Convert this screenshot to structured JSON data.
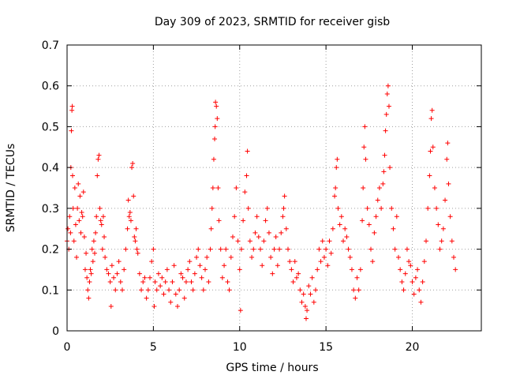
{
  "chart_data": {
    "type": "scatter",
    "title": "Day 309 of 2023, SRMTID for receiver gisb",
    "xlabel": "GPS time / hours",
    "ylabel": "SRMTID / TECUs",
    "xlim": [
      0,
      24
    ],
    "ylim": [
      0,
      0.7
    ],
    "xticks": [
      0,
      5,
      10,
      15,
      20
    ],
    "xtick_labels": [
      "0",
      "5",
      "10",
      "15",
      "20"
    ],
    "yticks": [
      0,
      0.1,
      0.2,
      0.3,
      0.4,
      0.5,
      0.6,
      0.7
    ],
    "ytick_labels": [
      "0",
      "0.1",
      "0.2",
      "0.3",
      "0.4",
      "0.5",
      "0.6",
      "0.7"
    ],
    "grid": true,
    "marker": "+",
    "marker_color": "#ff0000",
    "series": [
      {
        "name": "SRMTID",
        "points": [
          [
            0.0,
            0.22
          ],
          [
            0.05,
            0.25
          ],
          [
            0.1,
            0.2
          ],
          [
            0.15,
            0.28
          ],
          [
            0.2,
            0.24
          ],
          [
            0.22,
            0.4
          ],
          [
            0.25,
            0.49
          ],
          [
            0.28,
            0.54
          ],
          [
            0.3,
            0.55
          ],
          [
            0.32,
            0.38
          ],
          [
            0.35,
            0.3
          ],
          [
            0.4,
            0.22
          ],
          [
            0.45,
            0.35
          ],
          [
            0.5,
            0.26
          ],
          [
            0.55,
            0.18
          ],
          [
            0.6,
            0.3
          ],
          [
            0.65,
            0.36
          ],
          [
            0.7,
            0.27
          ],
          [
            0.75,
            0.33
          ],
          [
            0.8,
            0.24
          ],
          [
            0.85,
            0.29
          ],
          [
            0.9,
            0.28
          ],
          [
            0.95,
            0.34
          ],
          [
            1.0,
            0.23
          ],
          [
            1.05,
            0.15
          ],
          [
            1.1,
            0.19
          ],
          [
            1.15,
            0.13
          ],
          [
            1.2,
            0.1
          ],
          [
            1.25,
            0.08
          ],
          [
            1.3,
            0.12
          ],
          [
            1.35,
            0.15
          ],
          [
            1.4,
            0.14
          ],
          [
            1.45,
            0.2
          ],
          [
            1.5,
            0.17
          ],
          [
            1.55,
            0.22
          ],
          [
            1.6,
            0.19
          ],
          [
            1.65,
            0.24
          ],
          [
            1.7,
            0.28
          ],
          [
            1.75,
            0.38
          ],
          [
            1.8,
            0.42
          ],
          [
            1.85,
            0.43
          ],
          [
            1.9,
            0.3
          ],
          [
            1.95,
            0.27
          ],
          [
            2.0,
            0.26
          ],
          [
            2.05,
            0.2
          ],
          [
            2.1,
            0.28
          ],
          [
            2.15,
            0.23
          ],
          [
            2.2,
            0.18
          ],
          [
            2.3,
            0.15
          ],
          [
            2.4,
            0.14
          ],
          [
            2.5,
            0.12
          ],
          [
            2.55,
            0.06
          ],
          [
            2.6,
            0.16
          ],
          [
            2.7,
            0.13
          ],
          [
            2.8,
            0.1
          ],
          [
            2.9,
            0.14
          ],
          [
            3.0,
            0.17
          ],
          [
            3.1,
            0.12
          ],
          [
            3.2,
            0.1
          ],
          [
            3.3,
            0.15
          ],
          [
            3.4,
            0.2
          ],
          [
            3.5,
            0.25
          ],
          [
            3.55,
            0.32
          ],
          [
            3.6,
            0.28
          ],
          [
            3.65,
            0.29
          ],
          [
            3.7,
            0.27
          ],
          [
            3.75,
            0.4
          ],
          [
            3.8,
            0.41
          ],
          [
            3.85,
            0.33
          ],
          [
            3.9,
            0.23
          ],
          [
            3.95,
            0.22
          ],
          [
            4.0,
            0.25
          ],
          [
            4.05,
            0.2
          ],
          [
            4.1,
            0.19
          ],
          [
            4.2,
            0.14
          ],
          [
            4.3,
            0.1
          ],
          [
            4.4,
            0.12
          ],
          [
            4.5,
            0.13
          ],
          [
            4.6,
            0.08
          ],
          [
            4.7,
            0.1
          ],
          [
            4.8,
            0.13
          ],
          [
            4.9,
            0.17
          ],
          [
            5.0,
            0.2
          ],
          [
            5.05,
            0.06
          ],
          [
            5.1,
            0.12
          ],
          [
            5.2,
            0.1
          ],
          [
            5.3,
            0.14
          ],
          [
            5.4,
            0.11
          ],
          [
            5.5,
            0.13
          ],
          [
            5.6,
            0.09
          ],
          [
            5.7,
            0.12
          ],
          [
            5.8,
            0.15
          ],
          [
            5.9,
            0.1
          ],
          [
            6.0,
            0.07
          ],
          [
            6.1,
            0.12
          ],
          [
            6.2,
            0.16
          ],
          [
            6.3,
            0.09
          ],
          [
            6.4,
            0.06
          ],
          [
            6.5,
            0.1
          ],
          [
            6.6,
            0.14
          ],
          [
            6.7,
            0.13
          ],
          [
            6.8,
            0.08
          ],
          [
            6.9,
            0.12
          ],
          [
            7.0,
            0.15
          ],
          [
            7.1,
            0.17
          ],
          [
            7.2,
            0.12
          ],
          [
            7.3,
            0.1
          ],
          [
            7.4,
            0.14
          ],
          [
            7.5,
            0.18
          ],
          [
            7.6,
            0.2
          ],
          [
            7.7,
            0.16
          ],
          [
            7.8,
            0.13
          ],
          [
            7.9,
            0.1
          ],
          [
            8.0,
            0.15
          ],
          [
            8.1,
            0.18
          ],
          [
            8.2,
            0.12
          ],
          [
            8.3,
            0.2
          ],
          [
            8.35,
            0.25
          ],
          [
            8.4,
            0.3
          ],
          [
            8.45,
            0.35
          ],
          [
            8.5,
            0.42
          ],
          [
            8.55,
            0.47
          ],
          [
            8.58,
            0.5
          ],
          [
            8.6,
            0.56
          ],
          [
            8.65,
            0.55
          ],
          [
            8.7,
            0.52
          ],
          [
            8.75,
            0.35
          ],
          [
            8.8,
            0.27
          ],
          [
            8.9,
            0.2
          ],
          [
            9.0,
            0.13
          ],
          [
            9.1,
            0.16
          ],
          [
            9.2,
            0.2
          ],
          [
            9.3,
            0.12
          ],
          [
            9.4,
            0.1
          ],
          [
            9.5,
            0.18
          ],
          [
            9.6,
            0.23
          ],
          [
            9.7,
            0.28
          ],
          [
            9.8,
            0.35
          ],
          [
            9.9,
            0.22
          ],
          [
            10.0,
            0.15
          ],
          [
            10.05,
            0.05
          ],
          [
            10.1,
            0.2
          ],
          [
            10.2,
            0.27
          ],
          [
            10.3,
            0.34
          ],
          [
            10.4,
            0.38
          ],
          [
            10.45,
            0.44
          ],
          [
            10.5,
            0.3
          ],
          [
            10.6,
            0.22
          ],
          [
            10.7,
            0.18
          ],
          [
            10.8,
            0.2
          ],
          [
            10.9,
            0.24
          ],
          [
            11.0,
            0.28
          ],
          [
            11.1,
            0.23
          ],
          [
            11.2,
            0.2
          ],
          [
            11.3,
            0.16
          ],
          [
            11.4,
            0.22
          ],
          [
            11.5,
            0.27
          ],
          [
            11.6,
            0.3
          ],
          [
            11.7,
            0.24
          ],
          [
            11.8,
            0.18
          ],
          [
            11.9,
            0.14
          ],
          [
            12.0,
            0.2
          ],
          [
            12.1,
            0.23
          ],
          [
            12.2,
            0.16
          ],
          [
            12.3,
            0.2
          ],
          [
            12.4,
            0.24
          ],
          [
            12.5,
            0.28
          ],
          [
            12.55,
            0.3
          ],
          [
            12.6,
            0.33
          ],
          [
            12.7,
            0.25
          ],
          [
            12.8,
            0.2
          ],
          [
            12.9,
            0.17
          ],
          [
            13.0,
            0.15
          ],
          [
            13.1,
            0.12
          ],
          [
            13.2,
            0.17
          ],
          [
            13.3,
            0.13
          ],
          [
            13.4,
            0.14
          ],
          [
            13.5,
            0.1
          ],
          [
            13.6,
            0.07
          ],
          [
            13.7,
            0.09
          ],
          [
            13.8,
            0.06
          ],
          [
            13.85,
            0.03
          ],
          [
            13.9,
            0.05
          ],
          [
            14.0,
            0.11
          ],
          [
            14.1,
            0.09
          ],
          [
            14.2,
            0.13
          ],
          [
            14.3,
            0.07
          ],
          [
            14.4,
            0.1
          ],
          [
            14.5,
            0.15
          ],
          [
            14.6,
            0.2
          ],
          [
            14.7,
            0.17
          ],
          [
            14.8,
            0.22
          ],
          [
            14.9,
            0.18
          ],
          [
            15.0,
            0.2
          ],
          [
            15.1,
            0.16
          ],
          [
            15.2,
            0.22
          ],
          [
            15.3,
            0.19
          ],
          [
            15.4,
            0.25
          ],
          [
            15.5,
            0.33
          ],
          [
            15.55,
            0.35
          ],
          [
            15.6,
            0.4
          ],
          [
            15.65,
            0.42
          ],
          [
            15.7,
            0.3
          ],
          [
            15.8,
            0.26
          ],
          [
            15.9,
            0.28
          ],
          [
            16.0,
            0.22
          ],
          [
            16.1,
            0.25
          ],
          [
            16.2,
            0.23
          ],
          [
            16.3,
            0.2
          ],
          [
            16.4,
            0.18
          ],
          [
            16.5,
            0.15
          ],
          [
            16.6,
            0.1
          ],
          [
            16.7,
            0.08
          ],
          [
            16.8,
            0.13
          ],
          [
            16.9,
            0.1
          ],
          [
            17.0,
            0.15
          ],
          [
            17.1,
            0.27
          ],
          [
            17.15,
            0.35
          ],
          [
            17.2,
            0.45
          ],
          [
            17.25,
            0.5
          ],
          [
            17.3,
            0.42
          ],
          [
            17.4,
            0.3
          ],
          [
            17.5,
            0.26
          ],
          [
            17.6,
            0.2
          ],
          [
            17.7,
            0.17
          ],
          [
            17.8,
            0.24
          ],
          [
            17.9,
            0.28
          ],
          [
            18.0,
            0.32
          ],
          [
            18.1,
            0.35
          ],
          [
            18.2,
            0.3
          ],
          [
            18.3,
            0.36
          ],
          [
            18.35,
            0.39
          ],
          [
            18.4,
            0.43
          ],
          [
            18.45,
            0.49
          ],
          [
            18.5,
            0.53
          ],
          [
            18.55,
            0.58
          ],
          [
            18.6,
            0.6
          ],
          [
            18.65,
            0.55
          ],
          [
            18.7,
            0.4
          ],
          [
            18.8,
            0.3
          ],
          [
            18.9,
            0.25
          ],
          [
            19.0,
            0.2
          ],
          [
            19.1,
            0.28
          ],
          [
            19.2,
            0.18
          ],
          [
            19.3,
            0.15
          ],
          [
            19.4,
            0.12
          ],
          [
            19.5,
            0.1
          ],
          [
            19.6,
            0.14
          ],
          [
            19.7,
            0.2
          ],
          [
            19.8,
            0.17
          ],
          [
            19.9,
            0.16
          ],
          [
            20.0,
            0.12
          ],
          [
            20.1,
            0.09
          ],
          [
            20.2,
            0.13
          ],
          [
            20.3,
            0.15
          ],
          [
            20.4,
            0.1
          ],
          [
            20.5,
            0.07
          ],
          [
            20.6,
            0.12
          ],
          [
            20.7,
            0.17
          ],
          [
            20.8,
            0.22
          ],
          [
            20.9,
            0.3
          ],
          [
            21.0,
            0.38
          ],
          [
            21.05,
            0.44
          ],
          [
            21.1,
            0.52
          ],
          [
            21.15,
            0.54
          ],
          [
            21.2,
            0.45
          ],
          [
            21.3,
            0.35
          ],
          [
            21.4,
            0.3
          ],
          [
            21.5,
            0.26
          ],
          [
            21.6,
            0.2
          ],
          [
            21.7,
            0.22
          ],
          [
            21.8,
            0.25
          ],
          [
            21.9,
            0.32
          ],
          [
            22.0,
            0.42
          ],
          [
            22.05,
            0.46
          ],
          [
            22.1,
            0.36
          ],
          [
            22.2,
            0.28
          ],
          [
            22.3,
            0.22
          ],
          [
            22.4,
            0.18
          ],
          [
            22.5,
            0.15
          ]
        ]
      }
    ]
  }
}
